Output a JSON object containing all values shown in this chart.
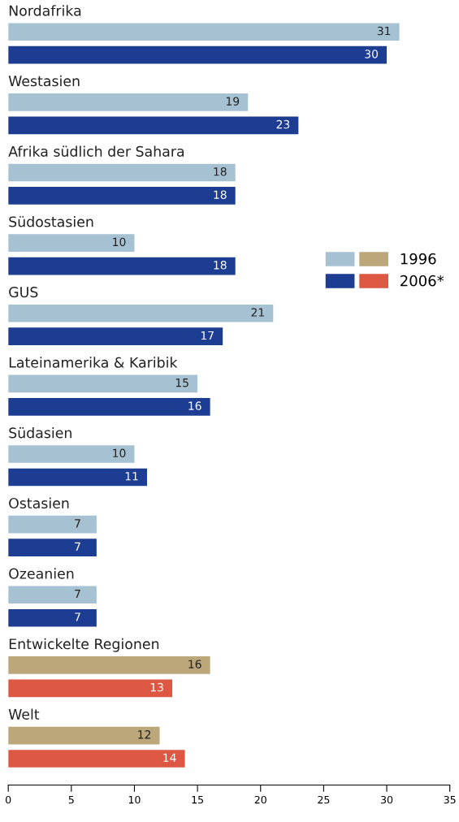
{
  "chart_data": {
    "type": "bar",
    "orientation": "horizontal",
    "categories": [
      "Nordafrika",
      "Westasien",
      "Afrika südlich der Sahara",
      "Südostasien",
      "GUS",
      "Lateinamerika & Karibik",
      "Südasien",
      "Ostasien",
      "Ozeanien",
      "Entwickelte Regionen",
      "Welt"
    ],
    "series": [
      {
        "name": "1996",
        "colors": [
          "#a5c1d2",
          "#a5c1d2",
          "#a5c1d2",
          "#a5c1d2",
          "#a5c1d2",
          "#a5c1d2",
          "#a5c1d2",
          "#a5c1d2",
          "#a5c1d2",
          "#bca77a",
          "#bca77a"
        ],
        "values": [
          31,
          19,
          18,
          10,
          21,
          15,
          10,
          7,
          7,
          16,
          12
        ]
      },
      {
        "name": "2006*",
        "colors": [
          "#1c3d92",
          "#1c3d92",
          "#1c3d92",
          "#1c3d92",
          "#1c3d92",
          "#1c3d92",
          "#1c3d92",
          "#1c3d92",
          "#1c3d92",
          "#dc5843",
          "#dc5843"
        ],
        "values": [
          30,
          23,
          18,
          18,
          17,
          16,
          11,
          7,
          7,
          13,
          14
        ]
      }
    ],
    "xlim": [
      0,
      35
    ],
    "xticks": [
      0,
      5,
      10,
      15,
      20,
      25,
      30,
      35
    ],
    "data_labels": true,
    "legend": "right",
    "grid": false
  }
}
